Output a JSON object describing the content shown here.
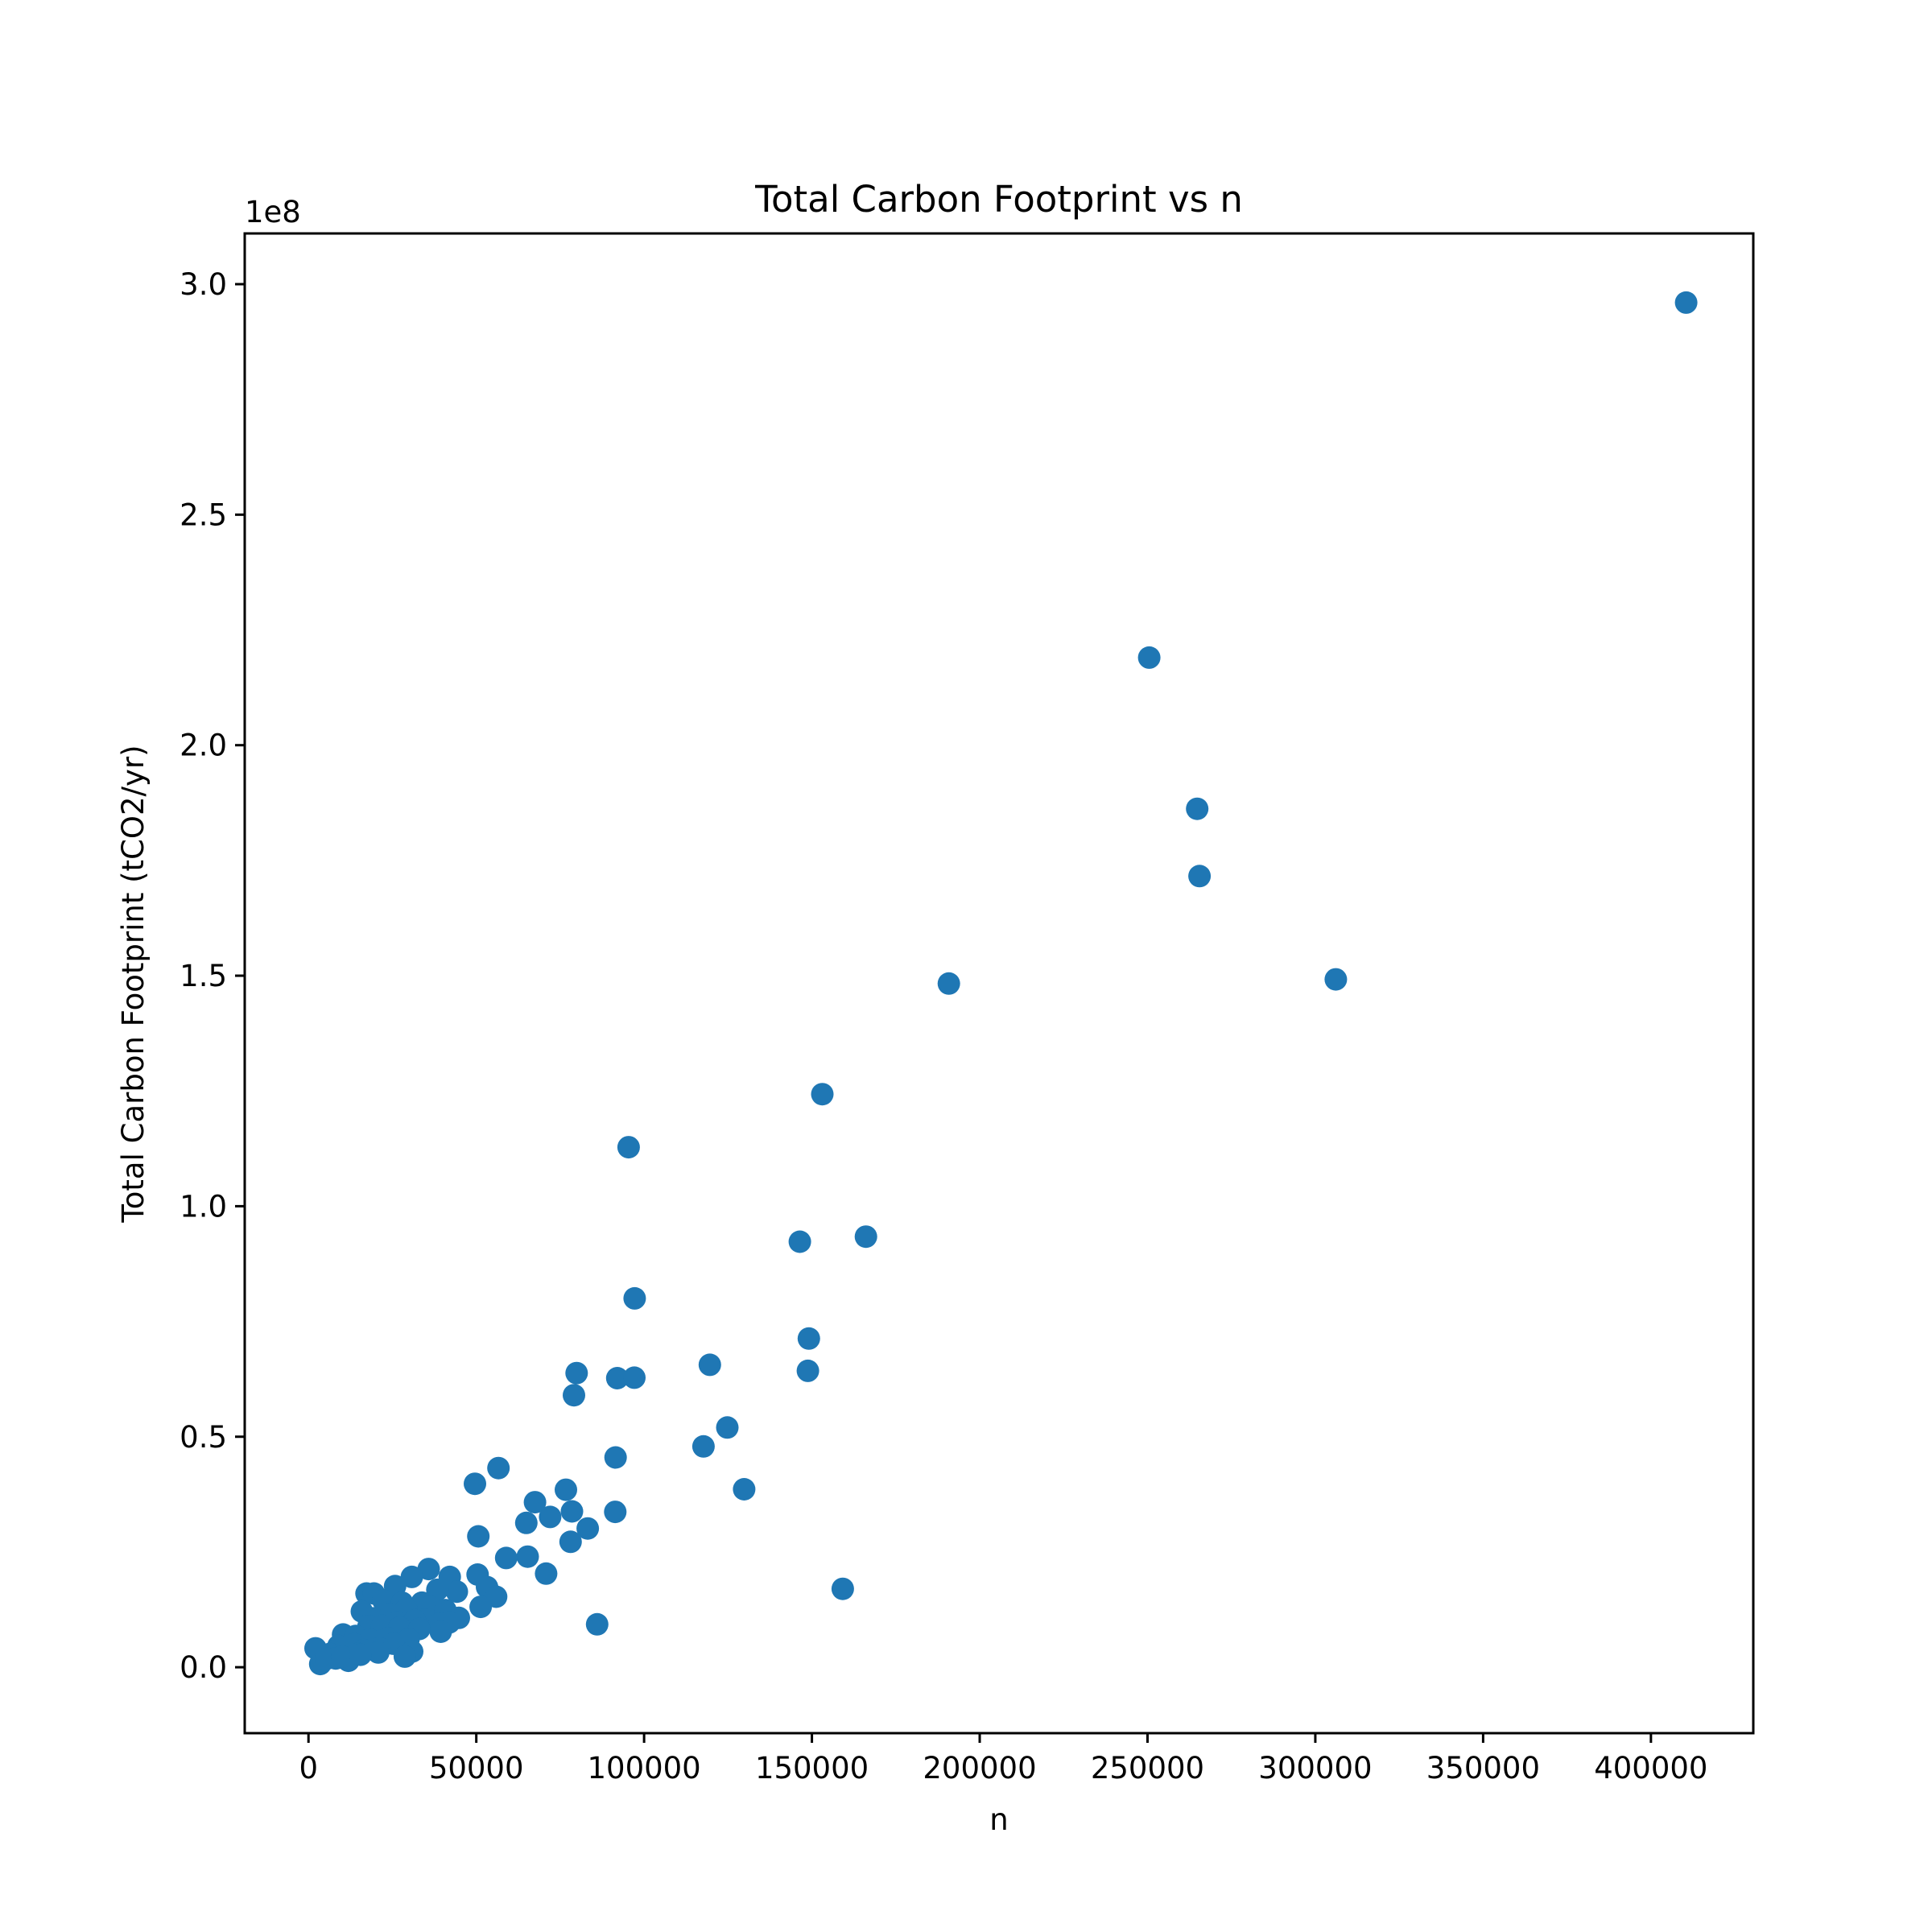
{
  "chart_data": {
    "type": "scatter",
    "title": "Total Carbon Footprint vs n",
    "xlabel": "n",
    "ylabel": "Total Carbon Footprint (tCO2/yr)",
    "y_offset_label": "1e8",
    "xlim": [
      -19000,
      430500
    ],
    "ylim": [
      -0.143,
      3.11
    ],
    "x_ticks": [
      0,
      50000,
      100000,
      150000,
      200000,
      250000,
      300000,
      350000,
      400000
    ],
    "x_tick_labels": [
      "0",
      "50000",
      "100000",
      "150000",
      "200000",
      "250000",
      "300000",
      "350000",
      "400000"
    ],
    "y_ticks": [
      0,
      0.5,
      1.0,
      1.5,
      2.0,
      2.5,
      3.0
    ],
    "y_tick_labels": [
      "0.0",
      "0.5",
      "1.0",
      "1.5",
      "2.0",
      "2.5",
      "3.0"
    ],
    "grid": false,
    "legend": "none",
    "marker_color": "#1f77b4",
    "series": [
      {
        "points": [
          [
            410500,
            2.96
          ],
          [
            250500,
            2.19
          ],
          [
            264800,
            1.862
          ],
          [
            265500,
            1.716
          ],
          [
            190800,
            1.483
          ],
          [
            306100,
            1.492
          ],
          [
            153100,
            1.243
          ],
          [
            95400,
            1.128
          ],
          [
            146400,
            0.923
          ],
          [
            166100,
            0.934
          ],
          [
            97200,
            0.8
          ],
          [
            149100,
            0.713
          ],
          [
            148800,
            0.643
          ],
          [
            119600,
            0.656
          ],
          [
            79900,
            0.638
          ],
          [
            92000,
            0.627
          ],
          [
            97100,
            0.628
          ],
          [
            79100,
            0.59
          ],
          [
            124800,
            0.52
          ],
          [
            117700,
            0.479
          ],
          [
            91500,
            0.455
          ],
          [
            56600,
            0.432
          ],
          [
            49600,
            0.398
          ],
          [
            76700,
            0.385
          ],
          [
            129800,
            0.386
          ],
          [
            67500,
            0.358
          ],
          [
            78500,
            0.338
          ],
          [
            91400,
            0.337
          ],
          [
            72000,
            0.326
          ],
          [
            64900,
            0.313
          ],
          [
            83200,
            0.301
          ],
          [
            50600,
            0.284
          ],
          [
            78100,
            0.272
          ],
          [
            65300,
            0.24
          ],
          [
            58900,
            0.237
          ],
          [
            159200,
            0.17
          ],
          [
            70800,
            0.203
          ],
          [
            86000,
            0.093
          ],
          [
            35800,
            0.213
          ],
          [
            30800,
            0.196
          ],
          [
            42100,
            0.196
          ],
          [
            50400,
            0.201
          ],
          [
            25800,
            0.176
          ],
          [
            17300,
            0.16
          ],
          [
            19500,
            0.16
          ],
          [
            53200,
            0.174
          ],
          [
            44200,
            0.164
          ],
          [
            38400,
            0.168
          ],
          [
            55900,
            0.153
          ],
          [
            22300,
            0.145
          ],
          [
            27900,
            0.14
          ],
          [
            33800,
            0.14
          ],
          [
            51300,
            0.131
          ],
          [
            15900,
            0.121
          ],
          [
            29100,
            0.126
          ],
          [
            36200,
            0.131
          ],
          [
            40800,
            0.124
          ],
          [
            24100,
            0.115
          ],
          [
            44800,
            0.107
          ],
          [
            19300,
            0.106
          ],
          [
            34600,
            0.103
          ],
          [
            26400,
            0.097
          ],
          [
            31700,
            0.102
          ],
          [
            38900,
            0.094
          ],
          [
            41900,
            0.097
          ],
          [
            17900,
            0.089
          ],
          [
            21900,
            0.09
          ],
          [
            27100,
            0.086
          ],
          [
            39400,
            0.077
          ],
          [
            33000,
            0.083
          ],
          [
            10300,
            0.071
          ],
          [
            14100,
            0.068
          ],
          [
            23600,
            0.063
          ],
          [
            18200,
            0.06
          ],
          [
            29800,
            0.061
          ],
          [
            13700,
            0.05
          ],
          [
            25300,
            0.051
          ],
          [
            8900,
            0.046
          ],
          [
            21100,
            0.041
          ],
          [
            16400,
            0.037
          ],
          [
            30900,
            0.034
          ],
          [
            2100,
            0.041
          ],
          [
            6400,
            0.029
          ],
          [
            11100,
            0.021
          ],
          [
            14700,
            0.029
          ],
          [
            20800,
            0.032
          ],
          [
            28700,
            0.023
          ],
          [
            8100,
            0.019
          ],
          [
            11900,
            0.014
          ],
          [
            3500,
            0.007
          ],
          [
            5200,
            0.018
          ],
          [
            10000,
            0.023
          ],
          [
            15500,
            0.027
          ]
        ]
      }
    ]
  }
}
